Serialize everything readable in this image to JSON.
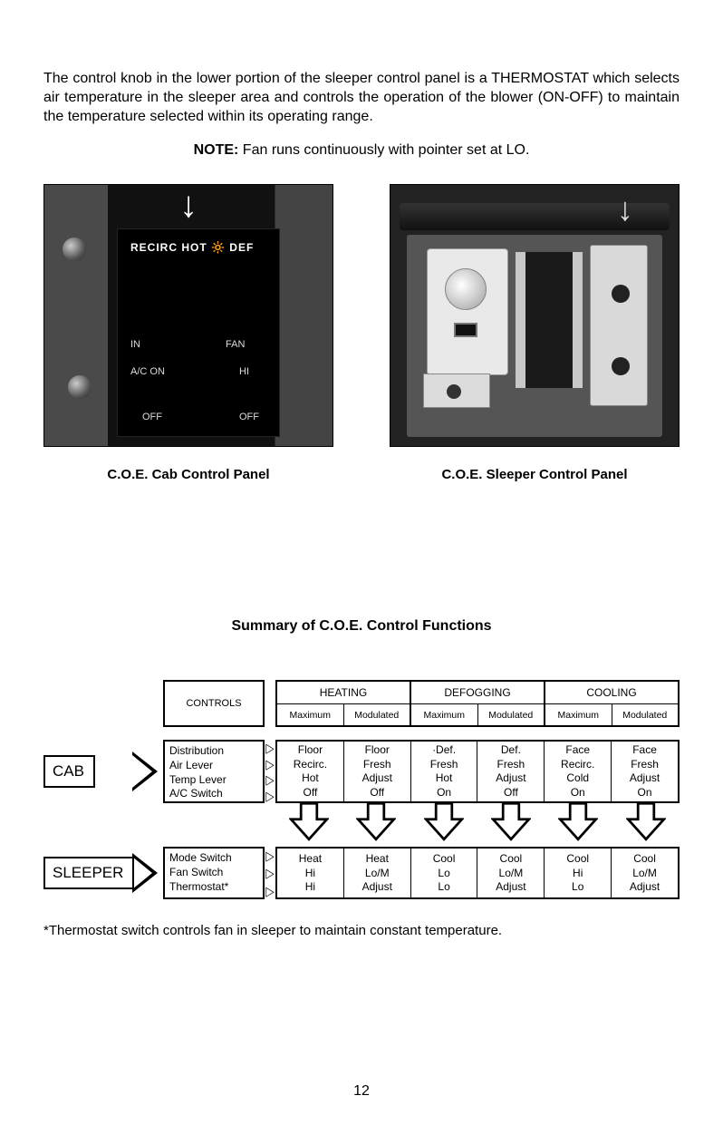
{
  "paragraph": "The control knob in the lower portion of the sleeper control panel is a THERMOSTAT which selects air temperature in the sleeper area and controls the operation of the blower (ON-OFF) to maintain the temperature selected within its operating range.",
  "note_bold": "NOTE:",
  "note_text": " Fan runs continuously with pointer set at LO.",
  "fig1_caption": "C.O.E. Cab Control Panel",
  "fig2_caption": "C.O.E. Sleeper Control Panel",
  "fig1_labels": {
    "top": "RECIRC   HOT   🔆 DEF",
    "a": "IN",
    "b": "A/C  ON",
    "c": "OFF",
    "d": "FAN",
    "e": "HI",
    "f": "OFF"
  },
  "section_title": "Summary of C.O.E. Control Functions",
  "controls_label": "CONTROLS",
  "groups": [
    {
      "title": "HEATING",
      "sub": [
        "Maximum",
        "Modulated"
      ]
    },
    {
      "title": "DEFOGGING",
      "sub": [
        "Maximum",
        "Modulated"
      ]
    },
    {
      "title": "COOLING",
      "sub": [
        "Maximum",
        "Modulated"
      ]
    }
  ],
  "cab": {
    "tag": "CAB",
    "controls": [
      "Distribution",
      "Air Lever",
      "Temp Lever",
      "A/C Switch"
    ],
    "cols": [
      [
        "Floor",
        "Recirc.",
        "Hot",
        "Off"
      ],
      [
        "Floor",
        "Fresh",
        "Adjust",
        "Off"
      ],
      [
        "·Def.",
        "Fresh",
        "Hot",
        "On"
      ],
      [
        "Def.",
        "Fresh",
        "Adjust",
        "Off"
      ],
      [
        "Face",
        "Recirc.",
        "Cold",
        "On"
      ],
      [
        "Face",
        "Fresh",
        "Adjust",
        "On"
      ]
    ]
  },
  "sleeper": {
    "tag": "SLEEPER",
    "controls": [
      "Mode Switch",
      "Fan Switch",
      "Thermostat*"
    ],
    "cols": [
      [
        "Heat",
        "Hi",
        "Hi"
      ],
      [
        "Heat",
        "Lo/M",
        "Adjust"
      ],
      [
        "Cool",
        "Lo",
        "Lo"
      ],
      [
        "Cool",
        "Lo/M",
        "Adjust"
      ],
      [
        "Cool",
        "Hi",
        "Lo"
      ],
      [
        "Cool",
        "Lo/M",
        "Adjust"
      ]
    ]
  },
  "footnote": "*Thermostat switch controls fan in sleeper to maintain constant temperature.",
  "page_number": "12",
  "colors": {
    "text": "#000000",
    "bg": "#ffffff",
    "photo_dark": "#1a1a1a",
    "photo_mid": "#4a4a4a",
    "border": "#000000"
  },
  "fontsizes": {
    "body": 16,
    "table": 12,
    "caption": 15
  }
}
